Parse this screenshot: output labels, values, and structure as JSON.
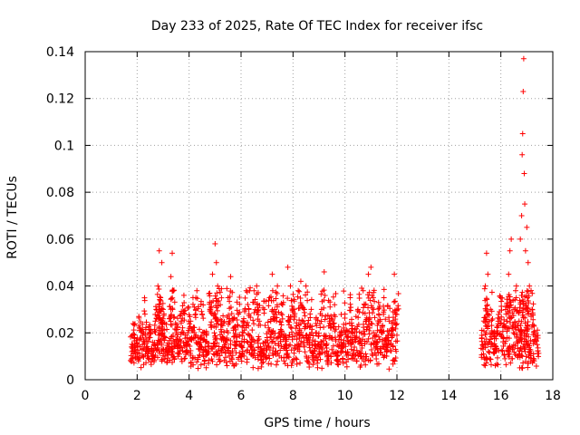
{
  "chart_data": {
    "type": "scatter",
    "title": "Day 233 of 2025, Rate Of TEC Index for receiver ifsc",
    "xlabel": "GPS time / hours",
    "ylabel": "ROTI / TECUs",
    "xlim": [
      0,
      18
    ],
    "ylim": [
      0,
      0.14
    ],
    "xticks": [
      0,
      2,
      4,
      6,
      8,
      10,
      12,
      14,
      16,
      18
    ],
    "yticks": [
      0,
      0.02,
      0.04,
      0.06,
      0.08,
      0.1,
      0.12,
      0.14
    ],
    "xtick_labels": [
      "0",
      "2",
      "4",
      "6",
      "8",
      "10",
      "12",
      "14",
      "16",
      "18"
    ],
    "ytick_labels": [
      "0",
      "0.02",
      "0.04",
      "0.06",
      "0.08",
      "0.1",
      "0.12",
      "0.14"
    ],
    "grid": true,
    "marker": "+",
    "color": "#ff0000",
    "series": [
      {
        "name": "ROTI",
        "points": [
          [
            1.8,
            0.012
          ],
          [
            1.9,
            0.018
          ],
          [
            2.0,
            0.01
          ],
          [
            2.1,
            0.022
          ],
          [
            2.2,
            0.015
          ],
          [
            2.3,
            0.028
          ],
          [
            2.4,
            0.012
          ],
          [
            2.5,
            0.02
          ],
          [
            2.6,
            0.009
          ],
          [
            2.7,
            0.025
          ],
          [
            2.8,
            0.04
          ],
          [
            2.85,
            0.055
          ],
          [
            2.9,
            0.035
          ],
          [
            2.95,
            0.05
          ],
          [
            3.0,
            0.03
          ],
          [
            3.1,
            0.018
          ],
          [
            3.2,
            0.012
          ],
          [
            3.3,
            0.044
          ],
          [
            3.35,
            0.054
          ],
          [
            3.4,
            0.038
          ],
          [
            3.5,
            0.02
          ],
          [
            3.6,
            0.015
          ],
          [
            3.7,
            0.025
          ],
          [
            3.8,
            0.036
          ],
          [
            3.9,
            0.012
          ],
          [
            4.0,
            0.022
          ],
          [
            4.1,
            0.018
          ],
          [
            4.2,
            0.031
          ],
          [
            4.3,
            0.038
          ],
          [
            4.4,
            0.015
          ],
          [
            4.5,
            0.028
          ],
          [
            4.6,
            0.02
          ],
          [
            4.7,
            0.012
          ],
          [
            4.8,
            0.03
          ],
          [
            4.9,
            0.045
          ],
          [
            5.0,
            0.058
          ],
          [
            5.05,
            0.05
          ],
          [
            5.1,
            0.04
          ],
          [
            5.2,
            0.032
          ],
          [
            5.3,
            0.018
          ],
          [
            5.4,
            0.012
          ],
          [
            5.5,
            0.035
          ],
          [
            5.6,
            0.044
          ],
          [
            5.7,
            0.022
          ],
          [
            5.8,
            0.015
          ],
          [
            5.9,
            0.028
          ],
          [
            6.0,
            0.01
          ],
          [
            6.1,
            0.02
          ],
          [
            6.2,
            0.038
          ],
          [
            6.3,
            0.03
          ],
          [
            6.4,
            0.015
          ],
          [
            6.5,
            0.038
          ],
          [
            6.6,
            0.04
          ],
          [
            6.7,
            0.025
          ],
          [
            6.8,
            0.012
          ],
          [
            6.9,
            0.03
          ],
          [
            7.0,
            0.018
          ],
          [
            7.1,
            0.035
          ],
          [
            7.2,
            0.045
          ],
          [
            7.3,
            0.028
          ],
          [
            7.4,
            0.04
          ],
          [
            7.5,
            0.02
          ],
          [
            7.6,
            0.032
          ],
          [
            7.7,
            0.015
          ],
          [
            7.8,
            0.048
          ],
          [
            7.9,
            0.04
          ],
          [
            8.0,
            0.03
          ],
          [
            8.1,
            0.022
          ],
          [
            8.2,
            0.038
          ],
          [
            8.3,
            0.042
          ],
          [
            8.4,
            0.025
          ],
          [
            8.5,
            0.04
          ],
          [
            8.6,
            0.018
          ],
          [
            8.7,
            0.03
          ],
          [
            8.8,
            0.012
          ],
          [
            8.9,
            0.02
          ],
          [
            9.0,
            0.015
          ],
          [
            9.1,
            0.03
          ],
          [
            9.2,
            0.046
          ],
          [
            9.3,
            0.012
          ],
          [
            9.4,
            0.025
          ],
          [
            9.5,
            0.018
          ],
          [
            9.6,
            0.032
          ],
          [
            9.7,
            0.01
          ],
          [
            9.8,
            0.02
          ],
          [
            9.9,
            0.015
          ],
          [
            10.0,
            0.028
          ],
          [
            10.1,
            0.012
          ],
          [
            10.2,
            0.035
          ],
          [
            10.3,
            0.02
          ],
          [
            10.4,
            0.018
          ],
          [
            10.5,
            0.03
          ],
          [
            10.6,
            0.012
          ],
          [
            10.7,
            0.038
          ],
          [
            10.8,
            0.025
          ],
          [
            10.9,
            0.045
          ],
          [
            11.0,
            0.048
          ],
          [
            11.1,
            0.03
          ],
          [
            11.2,
            0.015
          ],
          [
            11.3,
            0.028
          ],
          [
            11.4,
            0.02
          ],
          [
            11.5,
            0.035
          ],
          [
            11.6,
            0.012
          ],
          [
            11.7,
            0.025
          ],
          [
            11.8,
            0.018
          ],
          [
            11.9,
            0.045
          ],
          [
            12.0,
            0.03
          ],
          [
            15.3,
            0.015
          ],
          [
            15.4,
            0.04
          ],
          [
            15.45,
            0.054
          ],
          [
            15.5,
            0.045
          ],
          [
            15.6,
            0.03
          ],
          [
            15.7,
            0.02
          ],
          [
            15.8,
            0.012
          ],
          [
            15.9,
            0.025
          ],
          [
            16.0,
            0.035
          ],
          [
            16.1,
            0.018
          ],
          [
            16.2,
            0.028
          ],
          [
            16.3,
            0.045
          ],
          [
            16.35,
            0.055
          ],
          [
            16.4,
            0.06
          ],
          [
            16.5,
            0.03
          ],
          [
            16.6,
            0.04
          ],
          [
            16.7,
            0.025
          ],
          [
            16.75,
            0.06
          ],
          [
            16.8,
            0.07
          ],
          [
            16.82,
            0.096
          ],
          [
            16.84,
            0.105
          ],
          [
            16.86,
            0.123
          ],
          [
            16.88,
            0.137
          ],
          [
            16.9,
            0.088
          ],
          [
            16.92,
            0.075
          ],
          [
            16.95,
            0.055
          ],
          [
            17.0,
            0.065
          ],
          [
            17.05,
            0.05
          ],
          [
            17.1,
            0.04
          ],
          [
            17.2,
            0.03
          ],
          [
            17.3,
            0.02
          ],
          [
            17.4,
            0.015
          ]
        ]
      }
    ]
  }
}
